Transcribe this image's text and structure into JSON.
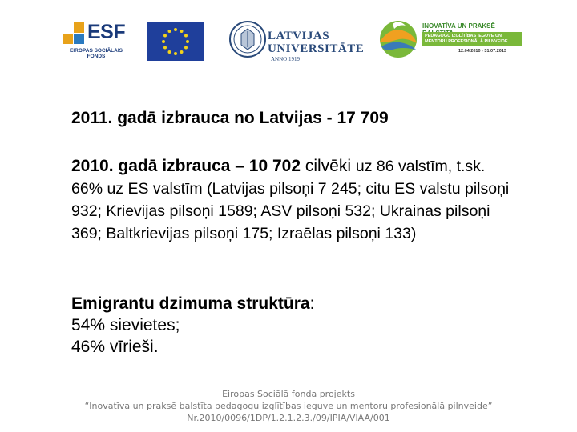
{
  "logos": {
    "esf": {
      "word": "ESF",
      "subtitle": "EIROPAS SOCIĀLAIS FONDS"
    },
    "eu_flag": {
      "name": "eu-flag",
      "colors": {
        "blue": "#1f3f9b",
        "star": "#f3d21a"
      }
    },
    "university": {
      "name_line1": "LATVIJAS",
      "name_line2": "UNIVERSITĀTE",
      "year": "ANNO 1919"
    },
    "project": {
      "title": "INOVATĪVA UN PRAKSĒ BALSTĪTA",
      "line": "PEDAGOGU IZGLĪTĪBAS IEGUVE UN MENTORU PROFESIONĀLĀ PILNVEIDE",
      "dates": "12.04.2010 - 31.07.2013"
    }
  },
  "content": {
    "line1": "2011. gadā izbrauca no Latvijas - 17 709",
    "p2": {
      "lead": "2010. gadā izbrauca – 10 702",
      "cont1": " cilvēki ",
      "rest": "uz 86 valstīm, t.sk. 66% uz ES valstīm (Latvijas pilsoņi 7 245; citu ES valstu pilsoņi 932; Krievijas pilsoņi 1589; ASV pilsoņi 532; Ukrainas pilsoņi 369; Baltkrievijas pilsoņi 175; Izraēlas pilsoņi 133)"
    },
    "p3": {
      "heading": "Emigrantu dzimuma struktūra",
      "colon": ":",
      "item1": "54% sievietes;",
      "item2": "46% vīrieši."
    }
  },
  "footer": {
    "line1": "Eiropas Sociālā fonda projekts",
    "line2": "“Inovatīva un praksē balstīta pedagogu izglītības ieguve un mentoru profesionālā pilnveide”",
    "line3": "Nr.2010/0096/1DP/1.2.1.2.3./09/IPIA/VIAA/001"
  }
}
